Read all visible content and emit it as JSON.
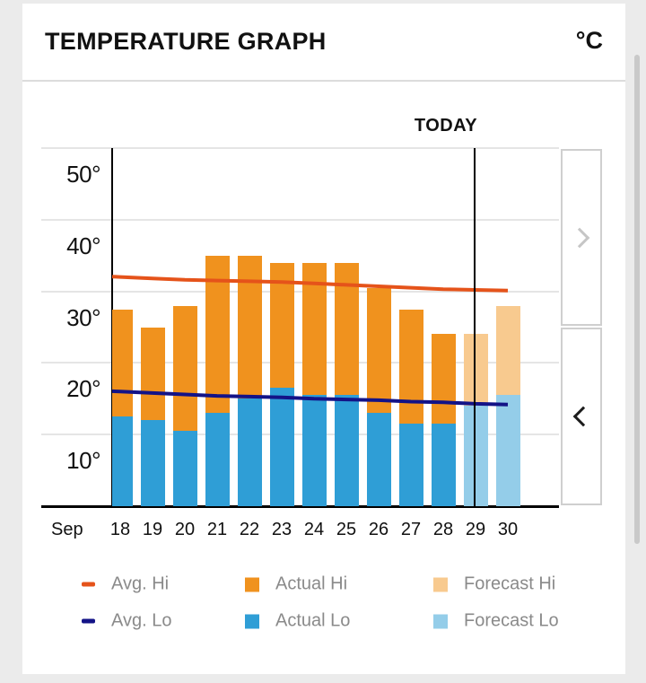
{
  "header": {
    "title": "TEMPERATURE GRAPH",
    "unit": "°C"
  },
  "chart": {
    "today_label": "TODAY"
  },
  "chart_data": {
    "type": "bar",
    "title": "TEMPERATURE GRAPH",
    "unit": "°C",
    "month_label": "Sep",
    "today_label": "TODAY",
    "today_date": 29,
    "categories": [
      18,
      19,
      20,
      21,
      22,
      23,
      24,
      25,
      26,
      27,
      28,
      29,
      30
    ],
    "series": [
      {
        "name": "Actual Hi",
        "type": "bar",
        "values": [
          27.5,
          25,
          28,
          35,
          35,
          34,
          34,
          34,
          30.5,
          27.5,
          24,
          null,
          null
        ]
      },
      {
        "name": "Actual Lo",
        "type": "bar",
        "values": [
          12.5,
          12,
          10.5,
          13,
          15,
          16.5,
          15.5,
          15.5,
          13,
          11.5,
          11.5,
          null,
          null
        ]
      },
      {
        "name": "Forecast Hi",
        "type": "bar",
        "values": [
          null,
          null,
          null,
          null,
          null,
          null,
          null,
          null,
          null,
          null,
          null,
          24,
          28
        ]
      },
      {
        "name": "Forecast Lo",
        "type": "bar",
        "values": [
          null,
          null,
          null,
          null,
          null,
          null,
          null,
          null,
          null,
          null,
          null,
          14,
          15.5
        ]
      },
      {
        "name": "Avg. Hi",
        "type": "line",
        "values": [
          32,
          31.8,
          31.6,
          31.5,
          31.4,
          31.3,
          31.1,
          30.9,
          30.7,
          30.5,
          30.3,
          30.2,
          30.1
        ]
      },
      {
        "name": "Avg. Lo",
        "type": "line",
        "values": [
          16,
          15.8,
          15.6,
          15.4,
          15.3,
          15.2,
          15,
          14.9,
          14.8,
          14.6,
          14.5,
          14.3,
          14.2
        ]
      }
    ],
    "ylim": [
      0,
      50
    ],
    "yticks": [
      10,
      20,
      30,
      40,
      50
    ],
    "ytick_suffix": "°",
    "grid": true,
    "legend_position": "bottom"
  },
  "colors": {
    "avg_hi": "#e5531a",
    "avg_lo": "#131387",
    "actual_hi": "#f0921e",
    "actual_lo": "#2f9ed6",
    "forecast_hi": "#f8ca8f",
    "forecast_lo": "#94cde9"
  },
  "legend": {
    "items": [
      {
        "label": "Avg. Hi",
        "swatch": "line",
        "color_key": "avg_hi"
      },
      {
        "label": "Actual Hi",
        "swatch": "square",
        "color_key": "actual_hi"
      },
      {
        "label": "Forecast Hi",
        "swatch": "square",
        "color_key": "forecast_hi"
      },
      {
        "label": "Avg. Lo",
        "swatch": "line",
        "color_key": "avg_lo"
      },
      {
        "label": "Actual Lo",
        "swatch": "square",
        "color_key": "actual_lo"
      },
      {
        "label": "Forecast Lo",
        "swatch": "square",
        "color_key": "forecast_lo"
      }
    ]
  },
  "nav": {
    "buttons": [
      {
        "name": "next",
        "direction": "right",
        "enabled": false
      },
      {
        "name": "previous",
        "direction": "left",
        "enabled": true
      }
    ]
  }
}
